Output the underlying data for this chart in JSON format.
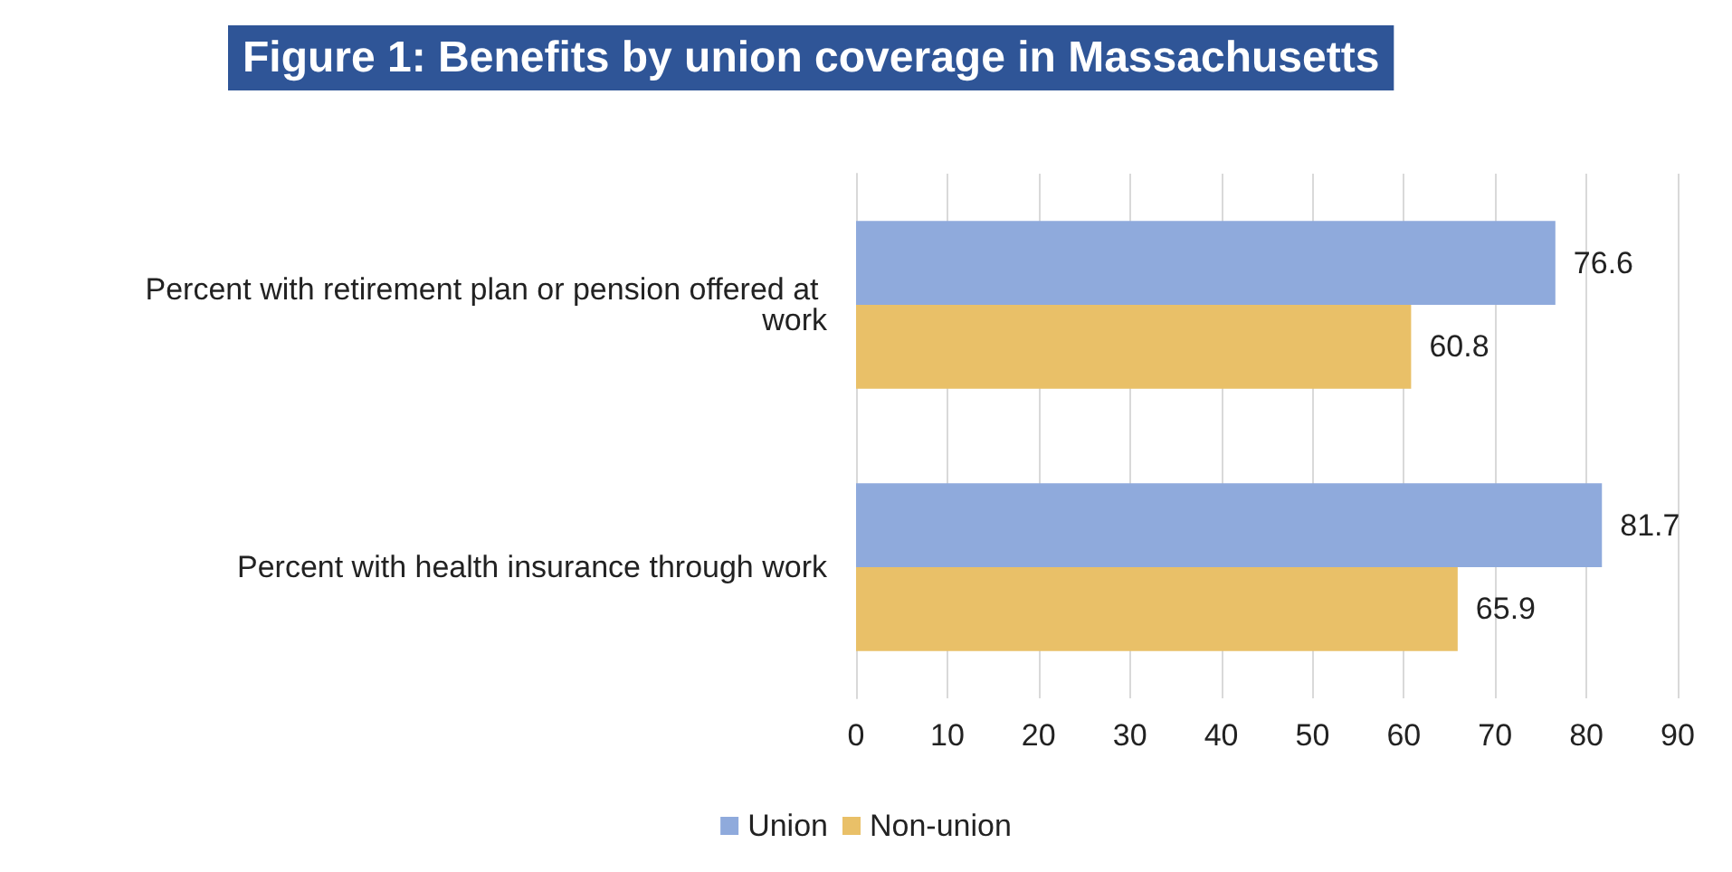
{
  "chart_data": {
    "type": "bar",
    "orientation": "horizontal",
    "title": "Figure 1: Benefits by union coverage in Massachusetts",
    "categories": [
      "Percent with retirement plan or pension offered at work",
      "Percent with health insurance through work"
    ],
    "series": [
      {
        "name": "Union",
        "color": "#8faadc",
        "values": [
          76.6,
          81.7
        ]
      },
      {
        "name": "Non-union",
        "color": "#e9c068",
        "values": [
          60.8,
          65.9
        ]
      }
    ],
    "xlim": [
      0,
      90
    ],
    "xticks": [
      0,
      10,
      20,
      30,
      40,
      50,
      60,
      70,
      80,
      90
    ],
    "grid": "x",
    "data_labels": true,
    "legend": "bottom"
  }
}
